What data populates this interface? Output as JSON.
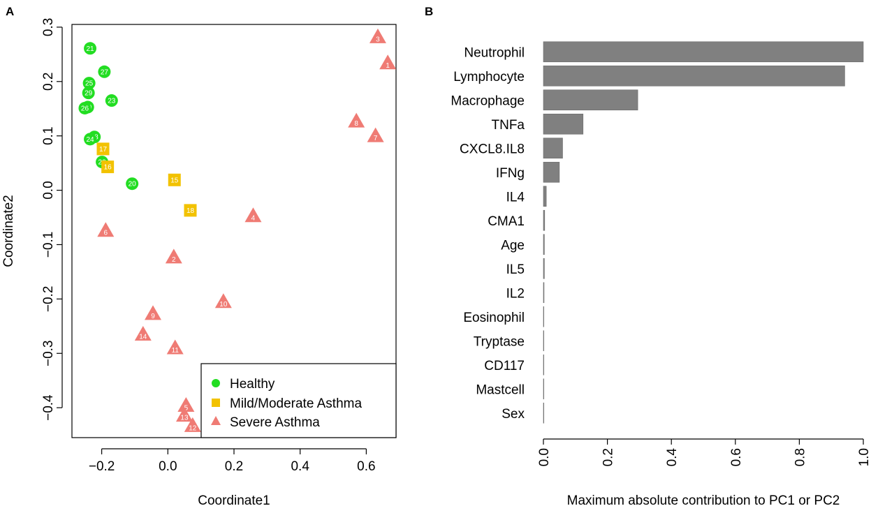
{
  "chart_data": [
    {
      "panel": "A",
      "type": "scatter",
      "xlabel": "Coordinate1",
      "ylabel": "Coordinate2",
      "xlim": [
        -0.29,
        0.69
      ],
      "ylim": [
        -0.455,
        0.305
      ],
      "xticks": [
        -0.2,
        0.0,
        0.2,
        0.4,
        0.6
      ],
      "xtick_labels": [
        "−0.2",
        "0.0",
        "0.2",
        "0.4",
        "0.6"
      ],
      "yticks": [
        -0.4,
        -0.3,
        -0.2,
        -0.1,
        0.0,
        0.1,
        0.2,
        0.3
      ],
      "ytick_labels": [
        "−0.4",
        "−0.3",
        "−0.2",
        "−0.1",
        "0.0",
        "0.1",
        "0.2",
        "0.3"
      ],
      "legend": {
        "position": "bottom-right",
        "entries": [
          {
            "label": "Healthy",
            "color": "#22dd22",
            "shape": "circle"
          },
          {
            "label": "Mild/Moderate Asthma",
            "color": "#f2c200",
            "shape": "square"
          },
          {
            "label": "Severe Asthma",
            "color": "#ef7b74",
            "shape": "triangle"
          }
        ]
      },
      "series": [
        {
          "name": "Healthy",
          "shape": "circle",
          "color": "#22dd22",
          "points": [
            {
              "id": "21",
              "x": -0.235,
              "y": 0.261
            },
            {
              "id": "27",
              "x": -0.192,
              "y": 0.218
            },
            {
              "id": "25",
              "x": -0.238,
              "y": 0.197
            },
            {
              "id": "29",
              "x": -0.24,
              "y": 0.179
            },
            {
              "id": "23",
              "x": -0.17,
              "y": 0.165
            },
            {
              "id": "30",
              "x": -0.242,
              "y": 0.153
            },
            {
              "id": "26",
              "x": -0.251,
              "y": 0.151
            },
            {
              "id": "28",
              "x": -0.222,
              "y": 0.098
            },
            {
              "id": "24",
              "x": -0.235,
              "y": 0.094
            },
            {
              "id": "22",
              "x": -0.199,
              "y": 0.052
            },
            {
              "id": "20",
              "x": -0.108,
              "y": 0.012
            }
          ]
        },
        {
          "name": "Mild/Moderate Asthma",
          "shape": "square",
          "color": "#f2c200",
          "points": [
            {
              "id": "17",
              "x": -0.196,
              "y": 0.076
            },
            {
              "id": "16",
              "x": -0.182,
              "y": 0.043
            },
            {
              "id": "15",
              "x": 0.02,
              "y": 0.019
            },
            {
              "id": "18",
              "x": 0.068,
              "y": -0.037
            }
          ]
        },
        {
          "name": "Severe Asthma",
          "shape": "triangle",
          "color": "#ef7b74",
          "points": [
            {
              "id": "3",
              "x": 0.635,
              "y": 0.282
            },
            {
              "id": "1",
              "x": 0.665,
              "y": 0.234
            },
            {
              "id": "8",
              "x": 0.57,
              "y": 0.127
            },
            {
              "id": "7",
              "x": 0.628,
              "y": 0.1
            },
            {
              "id": "4",
              "x": 0.258,
              "y": -0.047
            },
            {
              "id": "6",
              "x": -0.188,
              "y": -0.074
            },
            {
              "id": "2",
              "x": 0.018,
              "y": -0.123
            },
            {
              "id": "10",
              "x": 0.168,
              "y": -0.205
            },
            {
              "id": "9",
              "x": -0.045,
              "y": -0.227
            },
            {
              "id": "14",
              "x": -0.075,
              "y": -0.265
            },
            {
              "id": "11",
              "x": 0.022,
              "y": -0.29
            },
            {
              "id": "5",
              "x": 0.055,
              "y": -0.396
            },
            {
              "id": "13",
              "x": 0.05,
              "y": -0.414
            },
            {
              "id": "12",
              "x": 0.075,
              "y": -0.433
            }
          ]
        }
      ]
    },
    {
      "panel": "B",
      "type": "bar",
      "orientation": "horizontal",
      "xlabel": "Maximum absolute contribution to PC1 or PC2",
      "xlim": [
        0,
        1.0
      ],
      "xticks": [
        0.0,
        0.2,
        0.4,
        0.6,
        0.8,
        1.0
      ],
      "xtick_labels": [
        "0.0",
        "0.2",
        "0.4",
        "0.6",
        "0.8",
        "1.0"
      ],
      "bar_color": "#808080",
      "categories": [
        "Neutrophil",
        "Lymphocyte",
        "Macrophage",
        "TNFa",
        "CXCL8.IL8",
        "IFNg",
        "IL4",
        "CMA1",
        "Age",
        "IL5",
        "IL2",
        "Eosinophil",
        "Tryptase",
        "CD117",
        "Mastcell",
        "Sex"
      ],
      "values": [
        1.0,
        0.942,
        0.295,
        0.124,
        0.06,
        0.05,
        0.009,
        0.004,
        0.003,
        0.003,
        0.002,
        0.001,
        0.001,
        0.001,
        0.0005,
        0.0003
      ]
    }
  ],
  "panels": {
    "a_label": "A",
    "b_label": "B"
  }
}
